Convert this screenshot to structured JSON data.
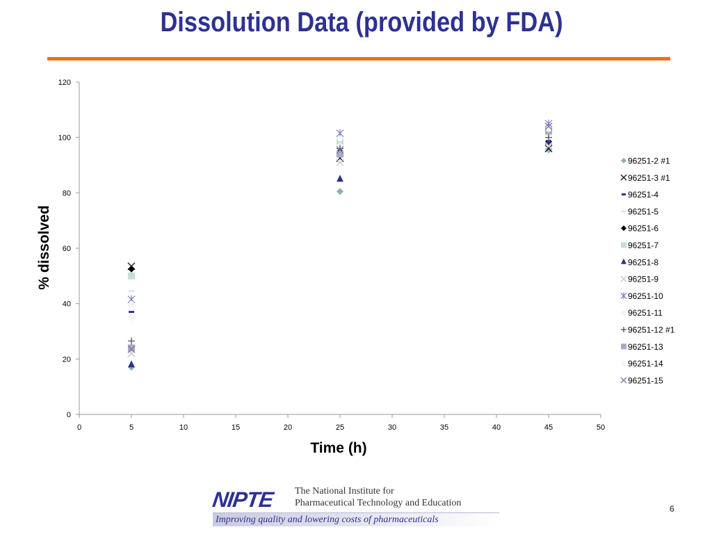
{
  "slide": {
    "title": "Dissolution Data (provided by FDA)",
    "page_number": "6",
    "colors": {
      "title": "#2e3192",
      "rule": "#f26b1d"
    }
  },
  "logo": {
    "mark": "NIPTE",
    "line1": "The National Institute for",
    "line2": "Pharmaceutical Technology and Education",
    "tagline": "Improving quality and lowering costs of pharmaceuticals"
  },
  "chart_data": {
    "type": "scatter",
    "title": "",
    "xlabel": "Time (h)",
    "ylabel": "% dissolved",
    "xlim": [
      0,
      50
    ],
    "ylim": [
      0,
      120
    ],
    "xticks": [
      0,
      5,
      10,
      15,
      20,
      25,
      30,
      35,
      40,
      45,
      50
    ],
    "yticks": [
      0,
      20,
      40,
      60,
      80,
      100,
      120
    ],
    "grid": false,
    "legend_position": "right",
    "series": [
      {
        "name": "96251-2 #1",
        "marker": "diamond",
        "color": "#8fb0b0",
        "points": [
          [
            5,
            17
          ],
          [
            25,
            80.5
          ],
          [
            45,
            95.5
          ]
        ]
      },
      {
        "name": "96251-3 #1",
        "marker": "x",
        "color": "#1a1a2e",
        "points": [
          [
            5,
            53.5
          ],
          [
            25,
            92.5
          ],
          [
            45,
            96
          ]
        ]
      },
      {
        "name": "96251-4",
        "marker": "dash",
        "color": "#2e3192",
        "points": [
          [
            5,
            37
          ],
          [
            25,
            93.5
          ],
          [
            45,
            98.5
          ]
        ]
      },
      {
        "name": "96251-5",
        "marker": "dash",
        "color": "#d8e8f0",
        "points": [
          [
            5,
            44.5
          ],
          [
            25,
            99
          ],
          [
            45,
            101
          ]
        ]
      },
      {
        "name": "96251-6",
        "marker": "diamond",
        "color": "#000000",
        "points": [
          [
            5,
            52.5
          ],
          [
            25,
            95
          ],
          [
            45,
            98.5
          ]
        ]
      },
      {
        "name": "96251-7",
        "marker": "square",
        "color": "#c5ddd8",
        "points": [
          [
            5,
            50
          ],
          [
            25,
            98.5
          ],
          [
            45,
            102
          ]
        ]
      },
      {
        "name": "96251-8",
        "marker": "triangle",
        "color": "#2e3192",
        "points": [
          [
            5,
            18
          ],
          [
            25,
            85
          ],
          [
            45,
            98.5
          ]
        ]
      },
      {
        "name": "96251-9",
        "marker": "x",
        "color": "#c8c8d8",
        "points": [
          [
            5,
            22
          ],
          [
            25,
            91
          ],
          [
            45,
            97
          ]
        ]
      },
      {
        "name": "96251-10",
        "marker": "star",
        "color": "#7b7bc0",
        "points": [
          [
            5,
            41.5
          ],
          [
            25,
            101.5
          ],
          [
            45,
            105
          ]
        ]
      },
      {
        "name": "96251-11",
        "marker": "circle",
        "color": "#f4f4f4",
        "points": [
          [
            5,
            40
          ],
          [
            25,
            97
          ],
          [
            45,
            100
          ]
        ]
      },
      {
        "name": "96251-12 #1",
        "marker": "plus",
        "color": "#444444",
        "points": [
          [
            5,
            26.5
          ],
          [
            25,
            96
          ],
          [
            45,
            100
          ]
        ]
      },
      {
        "name": "96251-13",
        "marker": "square",
        "color": "#a9a9c8",
        "points": [
          [
            5,
            24
          ],
          [
            25,
            94
          ],
          [
            45,
            102.5
          ]
        ]
      },
      {
        "name": "96251-14",
        "marker": "circle",
        "color": "#f8f8f8",
        "points": [
          [
            5,
            35
          ],
          [
            25,
            99.5
          ],
          [
            45,
            103
          ]
        ]
      },
      {
        "name": "96251-15",
        "marker": "x",
        "color": "#7a7aa8",
        "points": [
          [
            5,
            23.5
          ],
          [
            25,
            95.5
          ],
          [
            45,
            104
          ]
        ]
      }
    ]
  }
}
